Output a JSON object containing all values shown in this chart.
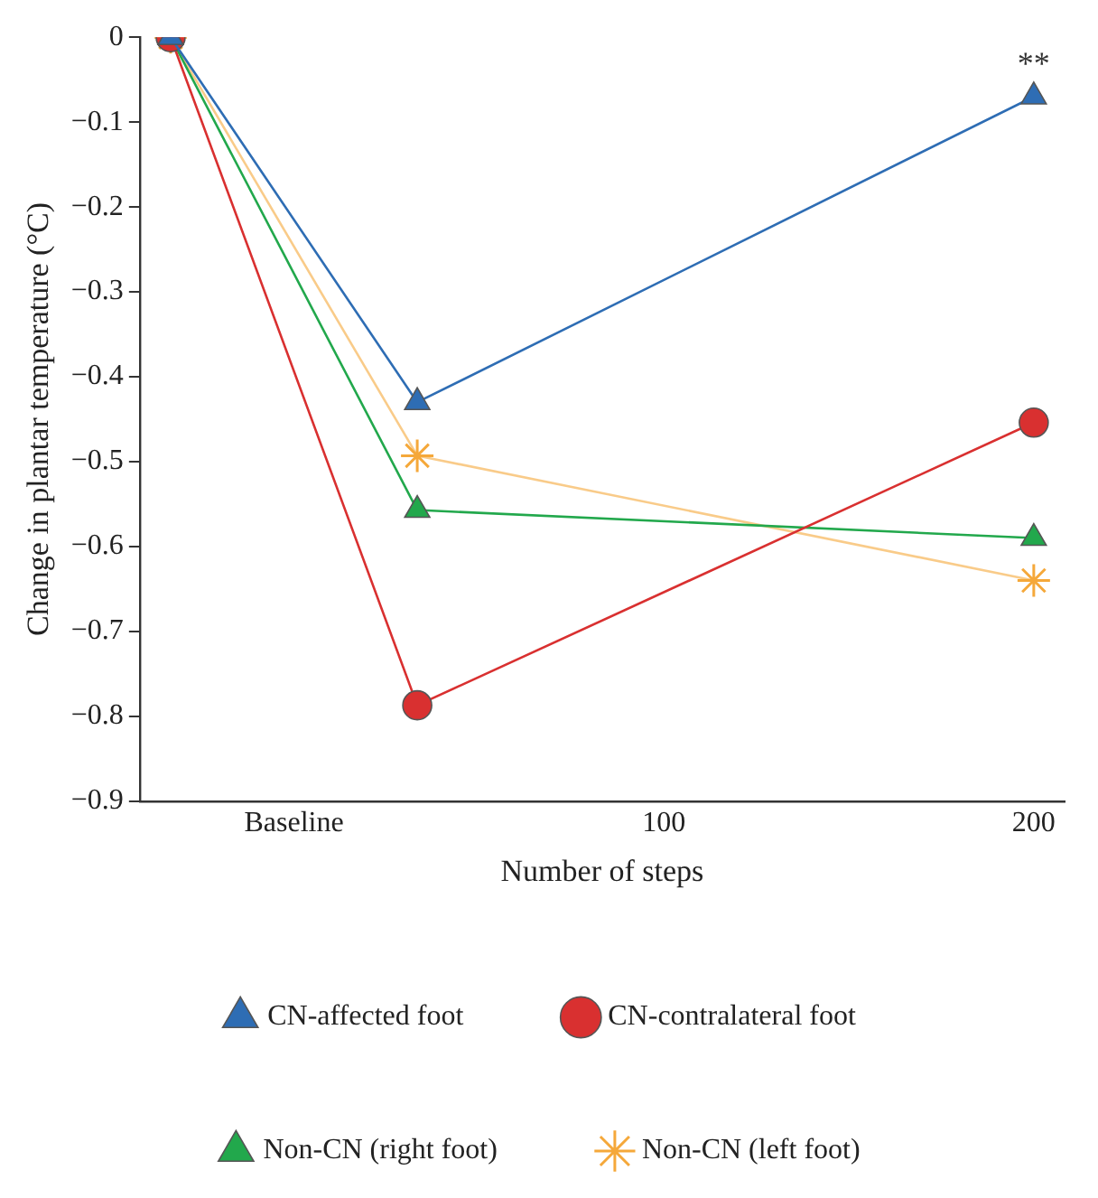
{
  "chart_data": {
    "type": "line",
    "xlabel": "Number of steps",
    "ylabel": "Change in plantar temperature (°C)",
    "categories": [
      null,
      null,
      "Baseline",
      null,
      null,
      null,
      null,
      null,
      "100",
      null,
      null,
      null,
      null,
      null,
      "200"
    ],
    "ylim": [
      -0.9,
      0
    ],
    "yticks": [
      0,
      {
        "value": -0.1,
        "label": "−0.1"
      },
      {
        "value": -0.2,
        "label": "−0.2"
      },
      {
        "value": -0.3,
        "label": "−0.3"
      },
      {
        "value": -0.4,
        "label": "−0.4"
      },
      {
        "value": -0.5,
        "label": "−0.5"
      },
      {
        "value": -0.6,
        "label": "−0.6"
      },
      {
        "value": -0.7,
        "label": "−0.7"
      },
      {
        "value": -0.8,
        "label": "−0.8"
      },
      {
        "value": -0.9,
        "label": "−0.9"
      }
    ],
    "series": [
      {
        "name": "CN-affected foot",
        "color": "#2e6db4",
        "marker": "triangle",
        "values": [
          0,
          null,
          null,
          null,
          -0.43,
          null,
          null,
          null,
          null,
          null,
          null,
          null,
          null,
          null,
          -0.07
        ]
      },
      {
        "name": "CN-contralateral foot",
        "color": "#d93030",
        "marker": "circle",
        "values": [
          0,
          null,
          null,
          null,
          -0.787,
          null,
          null,
          null,
          null,
          null,
          null,
          null,
          null,
          null,
          -0.454
        ]
      },
      {
        "name": "Non-CN (right foot)",
        "color": "#22a84c",
        "marker": "triangle",
        "values": [
          0,
          null,
          null,
          null,
          -0.557,
          null,
          null,
          null,
          null,
          null,
          null,
          null,
          null,
          null,
          -0.59
        ]
      },
      {
        "name": "Non-CN (left foot)",
        "color": "#f5a83a",
        "marker": "cross",
        "values": [
          0,
          null,
          null,
          null,
          -0.493,
          null,
          null,
          null,
          null,
          null,
          null,
          null,
          null,
          null,
          -0.64
        ]
      }
    ],
    "annotations": [
      {
        "text": "**",
        "x": "200",
        "y": -0.07
      }
    ],
    "grid": false,
    "legend": "bottom",
    "line_style": "solid"
  }
}
